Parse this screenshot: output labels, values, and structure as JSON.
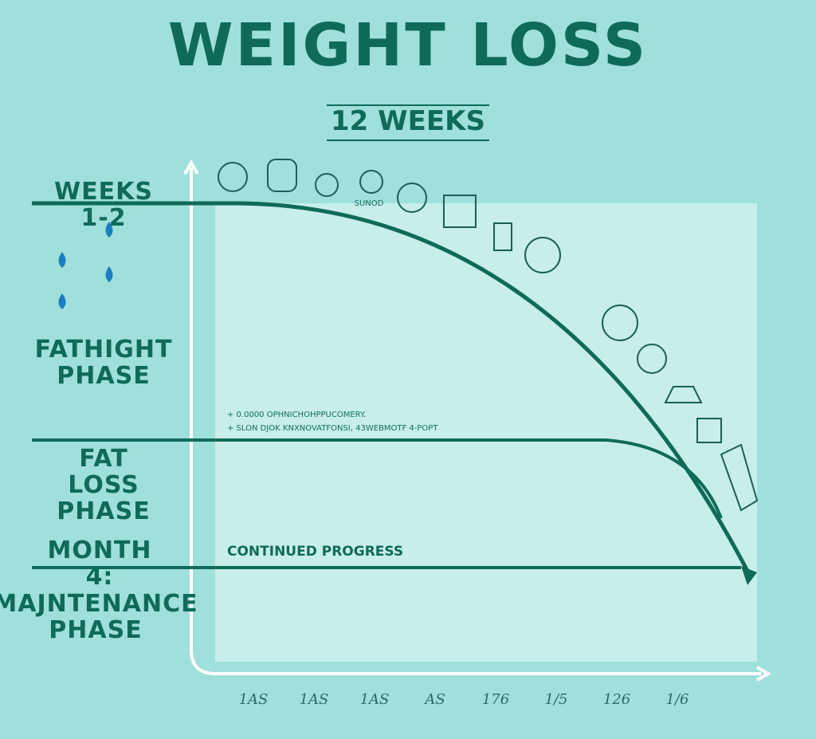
{
  "header": {
    "title": "WEIGHT LOSS",
    "subtitle": "12 WEEKS"
  },
  "phases": [
    {
      "label": "WEEKS 1-2"
    },
    {
      "label": "FATHIGHT PHASE"
    },
    {
      "label": "FAT LOSS PHASE"
    },
    {
      "label": "MONTH 4:"
    },
    {
      "label": "MAJNTENANCE PHASE"
    }
  ],
  "notes": [
    "+ 0.0000 OPHNICHOHPPUCOMERY.",
    "+ SLON DJOK KNXNOVATFONSI, 43WEBMOTF 4-POPT"
  ],
  "progress_label": "CONTINUED PROGRESS",
  "icon_label": "SUNOD",
  "x_labels": [
    "1AS",
    "1AS",
    "1AS",
    "AS",
    "176",
    "1/5",
    "126",
    "1/6"
  ]
}
